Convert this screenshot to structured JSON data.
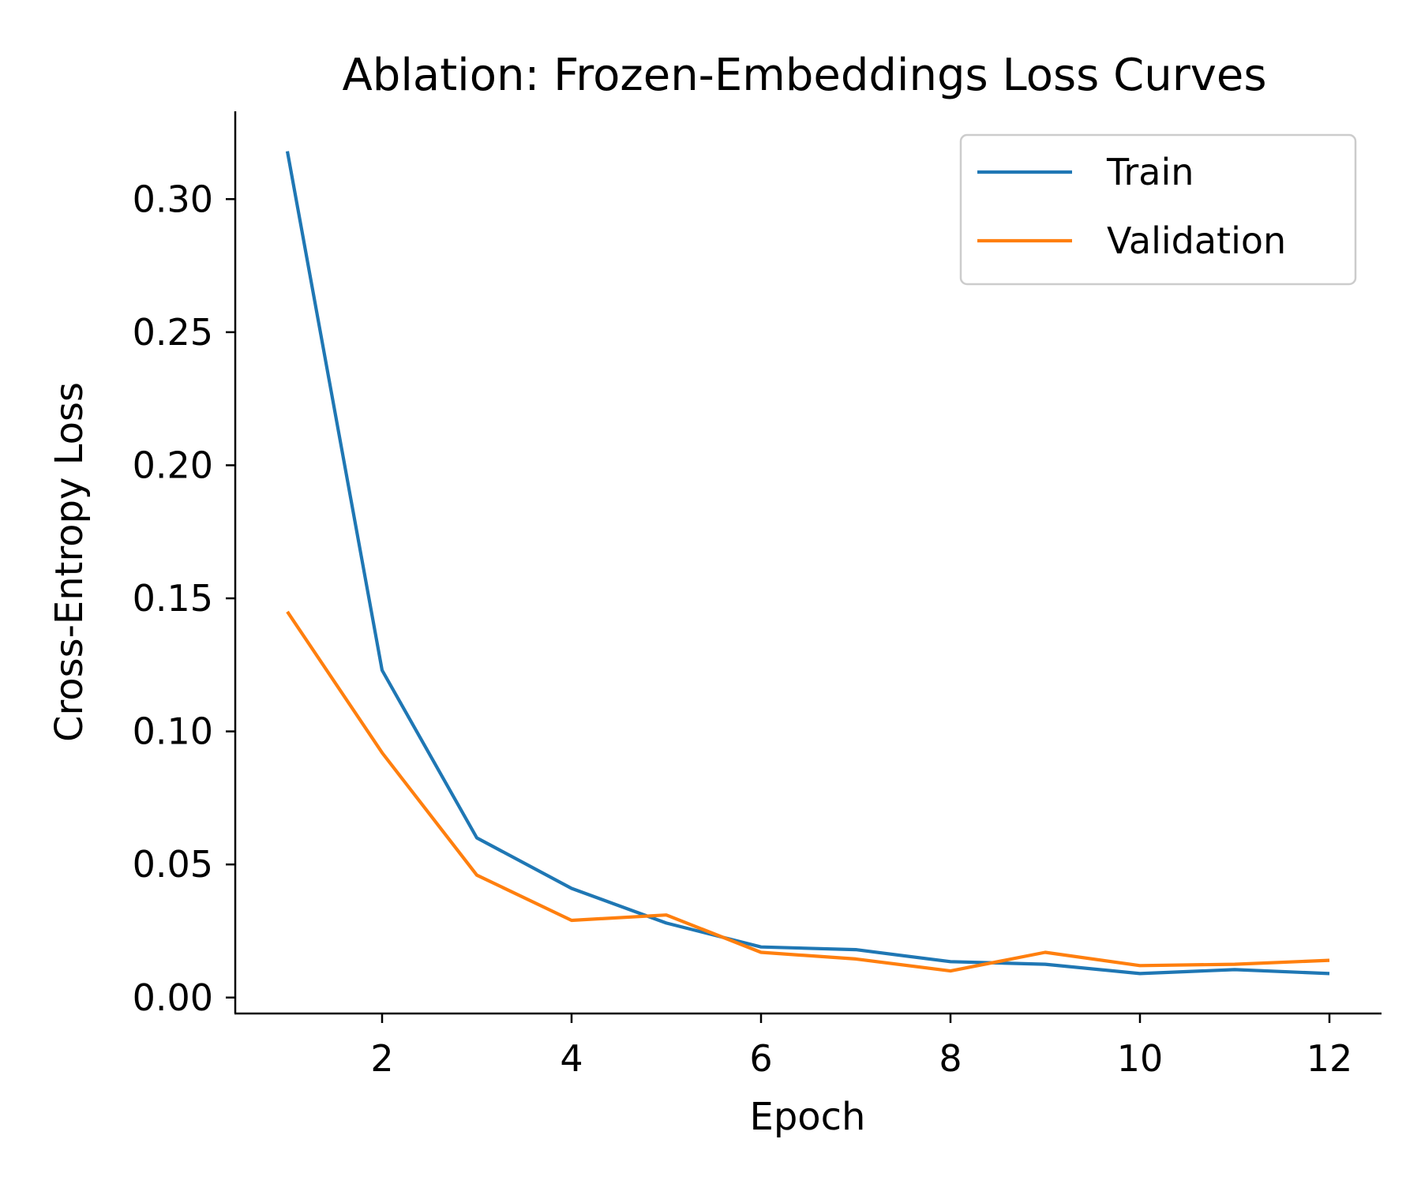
{
  "chart_data": {
    "type": "line",
    "title": "Ablation: Frozen-Embeddings Loss Curves",
    "xlabel": "Epoch",
    "ylabel": "Cross-Entropy Loss",
    "x": [
      1,
      2,
      3,
      4,
      5,
      6,
      7,
      8,
      9,
      10,
      11,
      12
    ],
    "series": [
      {
        "name": "Train",
        "color": "#1f77b4",
        "values": [
          0.318,
          0.123,
          0.06,
          0.041,
          0.028,
          0.019,
          0.018,
          0.0135,
          0.0125,
          0.009,
          0.0105,
          0.009
        ]
      },
      {
        "name": "Validation",
        "color": "#ff7f0e",
        "values": [
          0.145,
          0.092,
          0.046,
          0.029,
          0.031,
          0.017,
          0.0145,
          0.01,
          0.017,
          0.012,
          0.0125,
          0.014
        ]
      }
    ],
    "xlim": [
      0.45,
      12.55
    ],
    "ylim": [
      -0.006,
      0.333
    ],
    "xticks": [
      2,
      4,
      6,
      8,
      10,
      12
    ],
    "xtick_labels": [
      "2",
      "4",
      "6",
      "8",
      "10",
      "12"
    ],
    "yticks": [
      0.0,
      0.05,
      0.1,
      0.15,
      0.2,
      0.25,
      0.3
    ],
    "ytick_labels": [
      "0.00",
      "0.05",
      "0.10",
      "0.15",
      "0.20",
      "0.25",
      "0.30"
    ],
    "grid": false,
    "legend_position": "top-right",
    "spines": "left-bottom"
  }
}
